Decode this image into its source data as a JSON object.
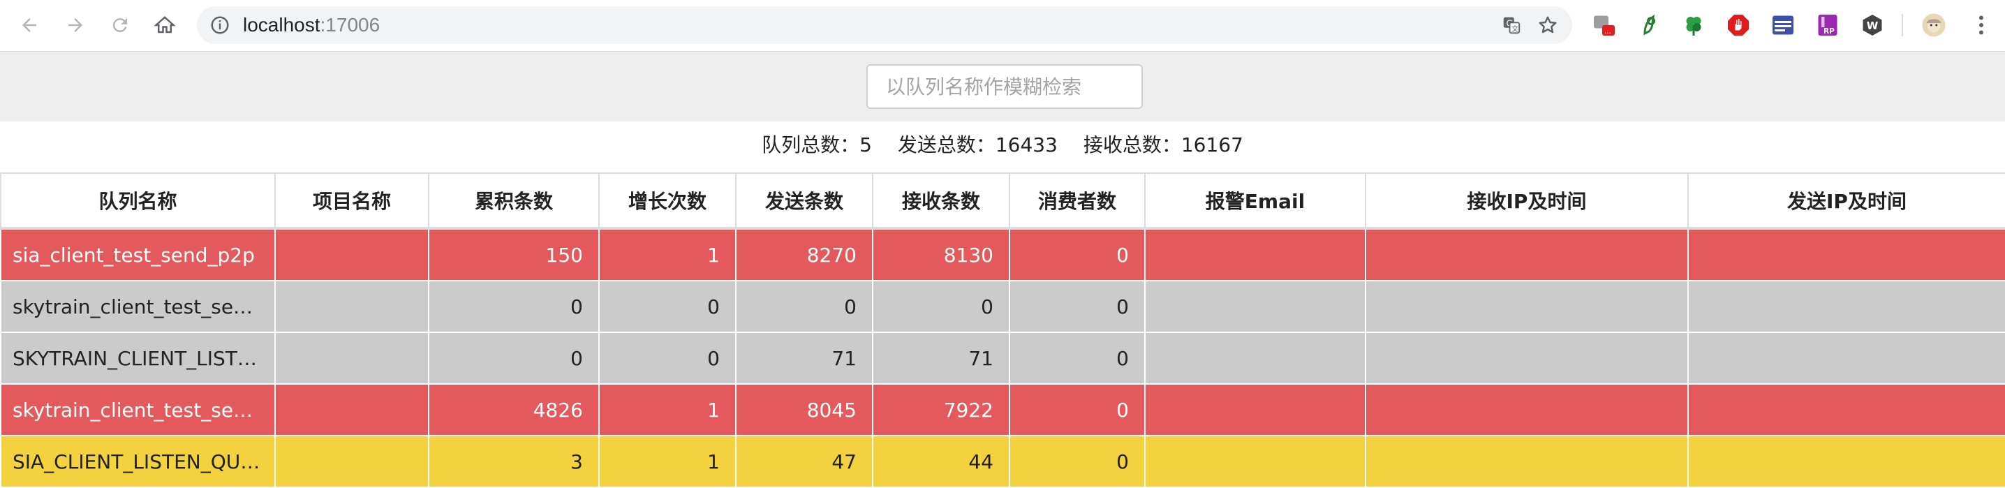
{
  "browser": {
    "url_host": "localhost",
    "url_port": ":17006"
  },
  "search": {
    "placeholder": "以队列名称作模糊检索"
  },
  "summary": {
    "queue_total_label": "队列总数：",
    "queue_total": "5",
    "send_total_label": "发送总数：",
    "send_total": "16433",
    "receive_total_label": "接收总数：",
    "receive_total": "16167"
  },
  "table": {
    "headers": [
      "队列名称",
      "项目名称",
      "累积条数",
      "增长次数",
      "发送条数",
      "接收条数",
      "消费者数",
      "报警Email",
      "接收IP及时间",
      "发送IP及时间"
    ],
    "rows": [
      {
        "status": "red",
        "cells": [
          "sia_client_test_send_p2p",
          "",
          "150",
          "1",
          "8270",
          "8130",
          "0",
          "",
          "",
          ""
        ]
      },
      {
        "status": "grey",
        "cells": [
          "skytrain_client_test_send…",
          "",
          "0",
          "0",
          "0",
          "0",
          "0",
          "",
          "",
          ""
        ]
      },
      {
        "status": "grey",
        "cells": [
          "SKYTRAIN_CLIENT_LIST…",
          "",
          "0",
          "0",
          "71",
          "71",
          "0",
          "",
          "",
          ""
        ]
      },
      {
        "status": "red",
        "cells": [
          "skytrain_client_test_send…",
          "",
          "4826",
          "1",
          "8045",
          "7922",
          "0",
          "",
          "",
          ""
        ]
      },
      {
        "status": "yellow",
        "cells": [
          "SIA_CLIENT_LISTEN_QU…",
          "",
          "3",
          "1",
          "47",
          "44",
          "0",
          "",
          "",
          ""
        ]
      }
    ]
  },
  "colors": {
    "red_row": "#e45a5c",
    "grey_row": "#cbcbcb",
    "yellow_row": "#f3d13f"
  },
  "icons": [
    "back-icon",
    "forward-icon",
    "reload-icon",
    "home-icon",
    "info-icon",
    "translate-icon",
    "star-icon",
    "extension-icons",
    "avatar",
    "menu-icon"
  ]
}
